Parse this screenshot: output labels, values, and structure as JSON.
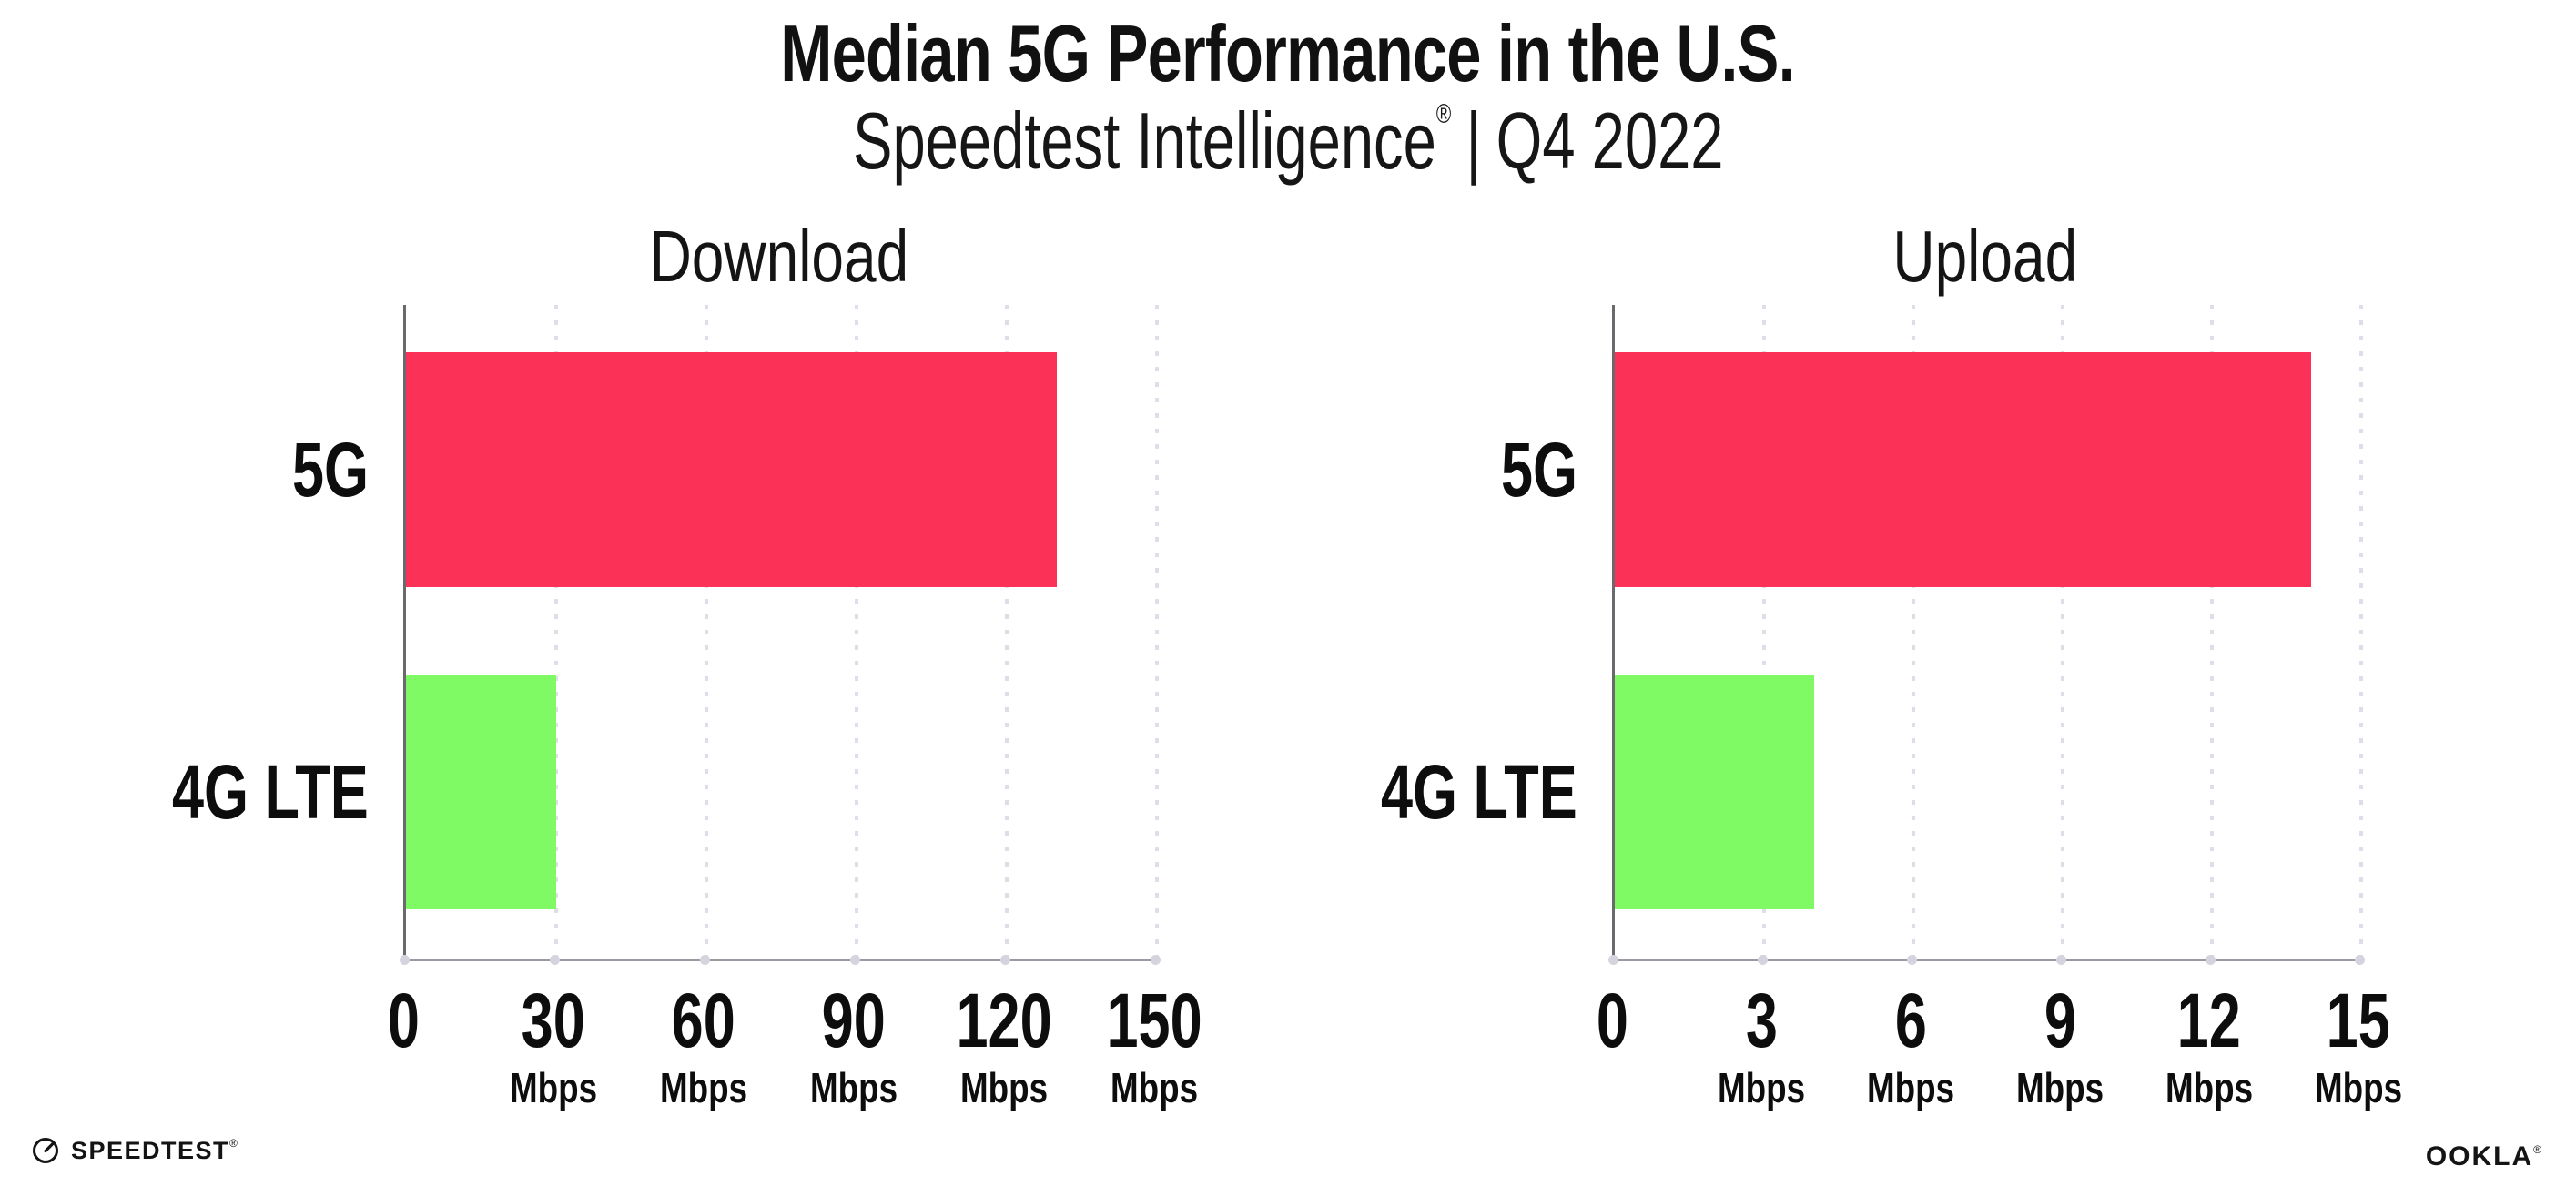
{
  "header": {
    "title": "Median 5G Performance in the U.S.",
    "subtitle": {
      "brand": "Speedtest Intelligence",
      "registered_mark": "®",
      "separator": "|",
      "period": "Q4 2022"
    }
  },
  "chart_data": [
    {
      "type": "bar",
      "orientation": "horizontal",
      "title": "Download",
      "categories": [
        "5G",
        "4G LTE"
      ],
      "values": [
        130,
        30
      ],
      "value_unit": "Mbps",
      "xlim": [
        0,
        150
      ],
      "xticks": [
        0,
        30,
        60,
        90,
        120,
        150
      ],
      "tick_labels": [
        "0",
        "30",
        "60",
        "90",
        "120",
        "150"
      ],
      "tick_units": [
        "",
        "Mbps",
        "Mbps",
        "Mbps",
        "Mbps",
        "Mbps"
      ],
      "bar_colors": [
        "#FC3158",
        "#7FFA64"
      ],
      "grid": "vertical-dotted",
      "legend": "none"
    },
    {
      "type": "bar",
      "orientation": "horizontal",
      "title": "Upload",
      "categories": [
        "5G",
        "4G LTE"
      ],
      "values": [
        14,
        4
      ],
      "value_unit": "Mbps",
      "xlim": [
        0,
        15
      ],
      "xticks": [
        0,
        3,
        6,
        9,
        12,
        15
      ],
      "tick_labels": [
        "0",
        "3",
        "6",
        "9",
        "12",
        "15"
      ],
      "tick_units": [
        "",
        "Mbps",
        "Mbps",
        "Mbps",
        "Mbps",
        "Mbps"
      ],
      "bar_colors": [
        "#FC3158",
        "#7FFA64"
      ],
      "grid": "vertical-dotted",
      "legend": "none"
    }
  ],
  "footer": {
    "speedtest_logo_text": "SPEEDTEST",
    "speedtest_mark": "®",
    "ookla_logo_text": "OOKLA",
    "ookla_mark": "®"
  },
  "colors": {
    "bar_5g": "#FC3158",
    "bar_4g_lte": "#7FFA64",
    "grid": "#dedee8",
    "axis_line": "#9a9aa2",
    "spine": "#6a6a6e",
    "tick_dot": "#d4d4de",
    "text": "#111111",
    "background": "#ffffff"
  }
}
